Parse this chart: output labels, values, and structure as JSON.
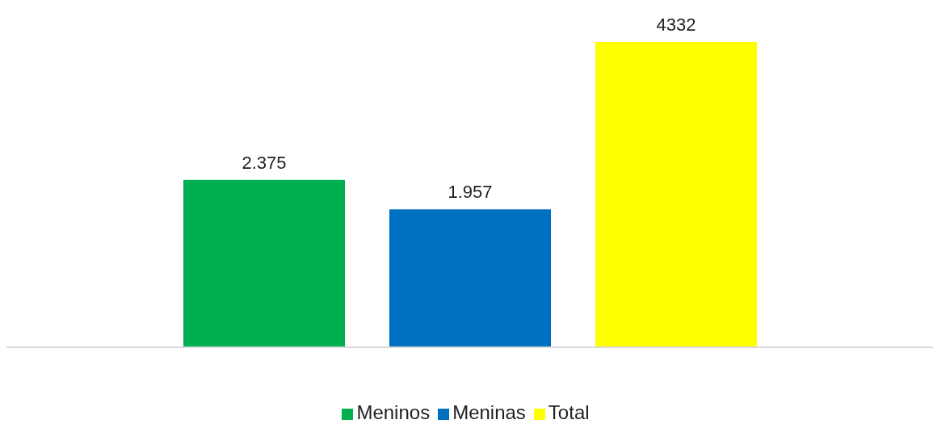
{
  "chart_data": {
    "type": "bar",
    "categories": [
      null
    ],
    "series": [
      {
        "name": "Meninos",
        "color": "#00b050",
        "values": [
          2375
        ],
        "value_labels": [
          "2.375"
        ]
      },
      {
        "name": "Meninas",
        "color": "#0070c0",
        "values": [
          1957
        ],
        "value_labels": [
          "1.957"
        ]
      },
      {
        "name": "Total",
        "color": "#ffff00",
        "values": [
          4332
        ],
        "value_labels": [
          "4332"
        ]
      }
    ],
    "legend": "bottom",
    "grid": false
  }
}
